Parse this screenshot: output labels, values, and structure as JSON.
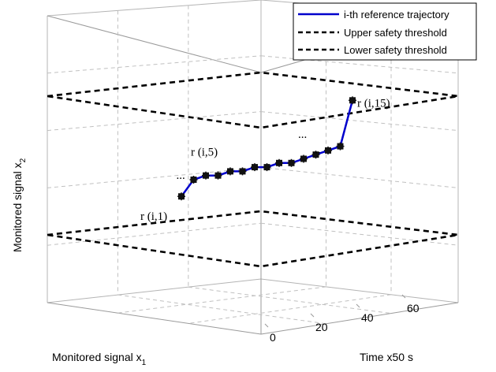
{
  "chart_data": {
    "type": "line",
    "projection": "3d",
    "xlabel": "Monitored signal x",
    "xlabel_sub": "1",
    "ylabel": "Monitored signal x",
    "ylabel_sub": "2",
    "tlabel": "Time x50 s",
    "t_ticks": [
      "0",
      "20",
      "40",
      "60"
    ],
    "t_range": [
      0,
      60
    ],
    "grid": true,
    "legend_position": "top-right",
    "series": [
      {
        "name": "i-th reference trajectory",
        "color": "#0000cc",
        "style": "solid",
        "points": [
          {
            "t": 1,
            "x2": 0.36
          },
          {
            "t": 2,
            "x2": 0.4
          },
          {
            "t": 3,
            "x2": 0.41
          },
          {
            "t": 4,
            "x2": 0.41
          },
          {
            "t": 5,
            "x2": 0.42
          },
          {
            "t": 6,
            "x2": 0.42
          },
          {
            "t": 7,
            "x2": 0.43
          },
          {
            "t": 8,
            "x2": 0.43
          },
          {
            "t": 9,
            "x2": 0.44
          },
          {
            "t": 10,
            "x2": 0.44
          },
          {
            "t": 11,
            "x2": 0.45
          },
          {
            "t": 12,
            "x2": 0.46
          },
          {
            "t": 13,
            "x2": 0.47
          },
          {
            "t": 14,
            "x2": 0.48
          },
          {
            "t": 15,
            "x2": 0.59
          }
        ]
      },
      {
        "name": "Upper safety threshold",
        "color": "#000000",
        "style": "dashed"
      },
      {
        "name": "Lower safety threshold",
        "color": "#000000",
        "style": "dashed"
      }
    ],
    "annotations": [
      {
        "label": "r (i,1)",
        "point": 1
      },
      {
        "label": "r (i,5)",
        "point": 5
      },
      {
        "label": "r (i,15)",
        "point": 15
      },
      {
        "label": "...",
        "point": 2
      },
      {
        "label": "...",
        "point": 13
      },
      {
        "label": "...",
        "point": 14
      }
    ]
  }
}
